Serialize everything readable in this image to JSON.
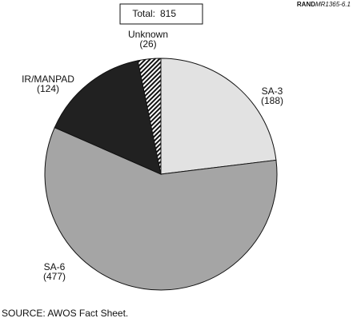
{
  "chart_data": {
    "type": "pie",
    "total_label": "Total:",
    "total": 815,
    "code_prefix": "RAND",
    "code": "MR1365-6.1",
    "source": "SOURCE:  AWOS Fact Sheet.",
    "categories": [
      "SA-3",
      "SA-6",
      "IR/MANPAD",
      "Unknown"
    ],
    "values": [
      188,
      477,
      124,
      26
    ],
    "value_labels": [
      "(188)",
      "(477)",
      "(124)",
      "(26)"
    ],
    "colors": [
      "#e2e2e2",
      "#a5a5a5",
      "#212121",
      "url(#hatch)"
    ]
  }
}
